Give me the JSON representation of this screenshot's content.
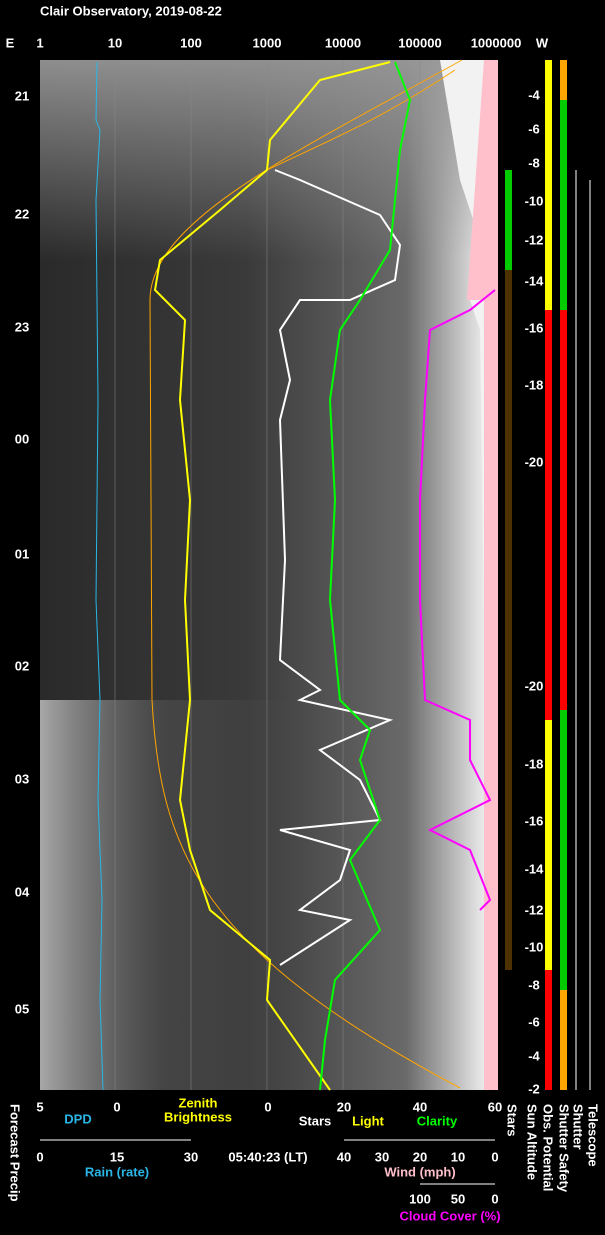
{
  "header": {
    "title": "Clair Observatory, 2019-08-22"
  },
  "top_axis": {
    "left": "E",
    "right": "W",
    "ticks": [
      "1",
      "10",
      "100",
      "1000",
      "10000",
      "100000",
      "1000000"
    ]
  },
  "hours": [
    "21",
    "22",
    "23",
    "00",
    "01",
    "02",
    "03",
    "04",
    "05"
  ],
  "sun_altitude": [
    "-4",
    "-6",
    "-8",
    "-10",
    "-12",
    "-14",
    "-16",
    "-18",
    "-20",
    "-20",
    "-18",
    "-16",
    "-14",
    "-12",
    "-10",
    "-8",
    "-6",
    "-4",
    "-2"
  ],
  "bottom": {
    "row1": {
      "ticks": [
        "5",
        "0",
        "0",
        "20",
        "40",
        "60"
      ],
      "dpd": "DPD",
      "zenith": "Zenith",
      "brightness": "Brightness",
      "stars": "Stars",
      "light": "Light",
      "clarity": "Clarity"
    },
    "row2": {
      "rain_ticks": [
        "0",
        "15",
        "30"
      ],
      "rain": "Rain (rate)",
      "time": "05:40:23 (LT)",
      "wind_ticks": [
        "40",
        "30",
        "20",
        "10",
        "0"
      ],
      "wind": "Wind (mph)"
    },
    "row3": {
      "cloud_ticks": [
        "100",
        "50",
        "0"
      ],
      "cloud": "Cloud Cover (%)"
    }
  },
  "side_labels": {
    "forecast": "Forecast Precip",
    "stars": "Stars",
    "sun": "Sun Altitude",
    "obs": "Obs. Potential",
    "safety": "Shutter Safety",
    "shutter": "Shutter",
    "telescope": "Telescope"
  }
}
